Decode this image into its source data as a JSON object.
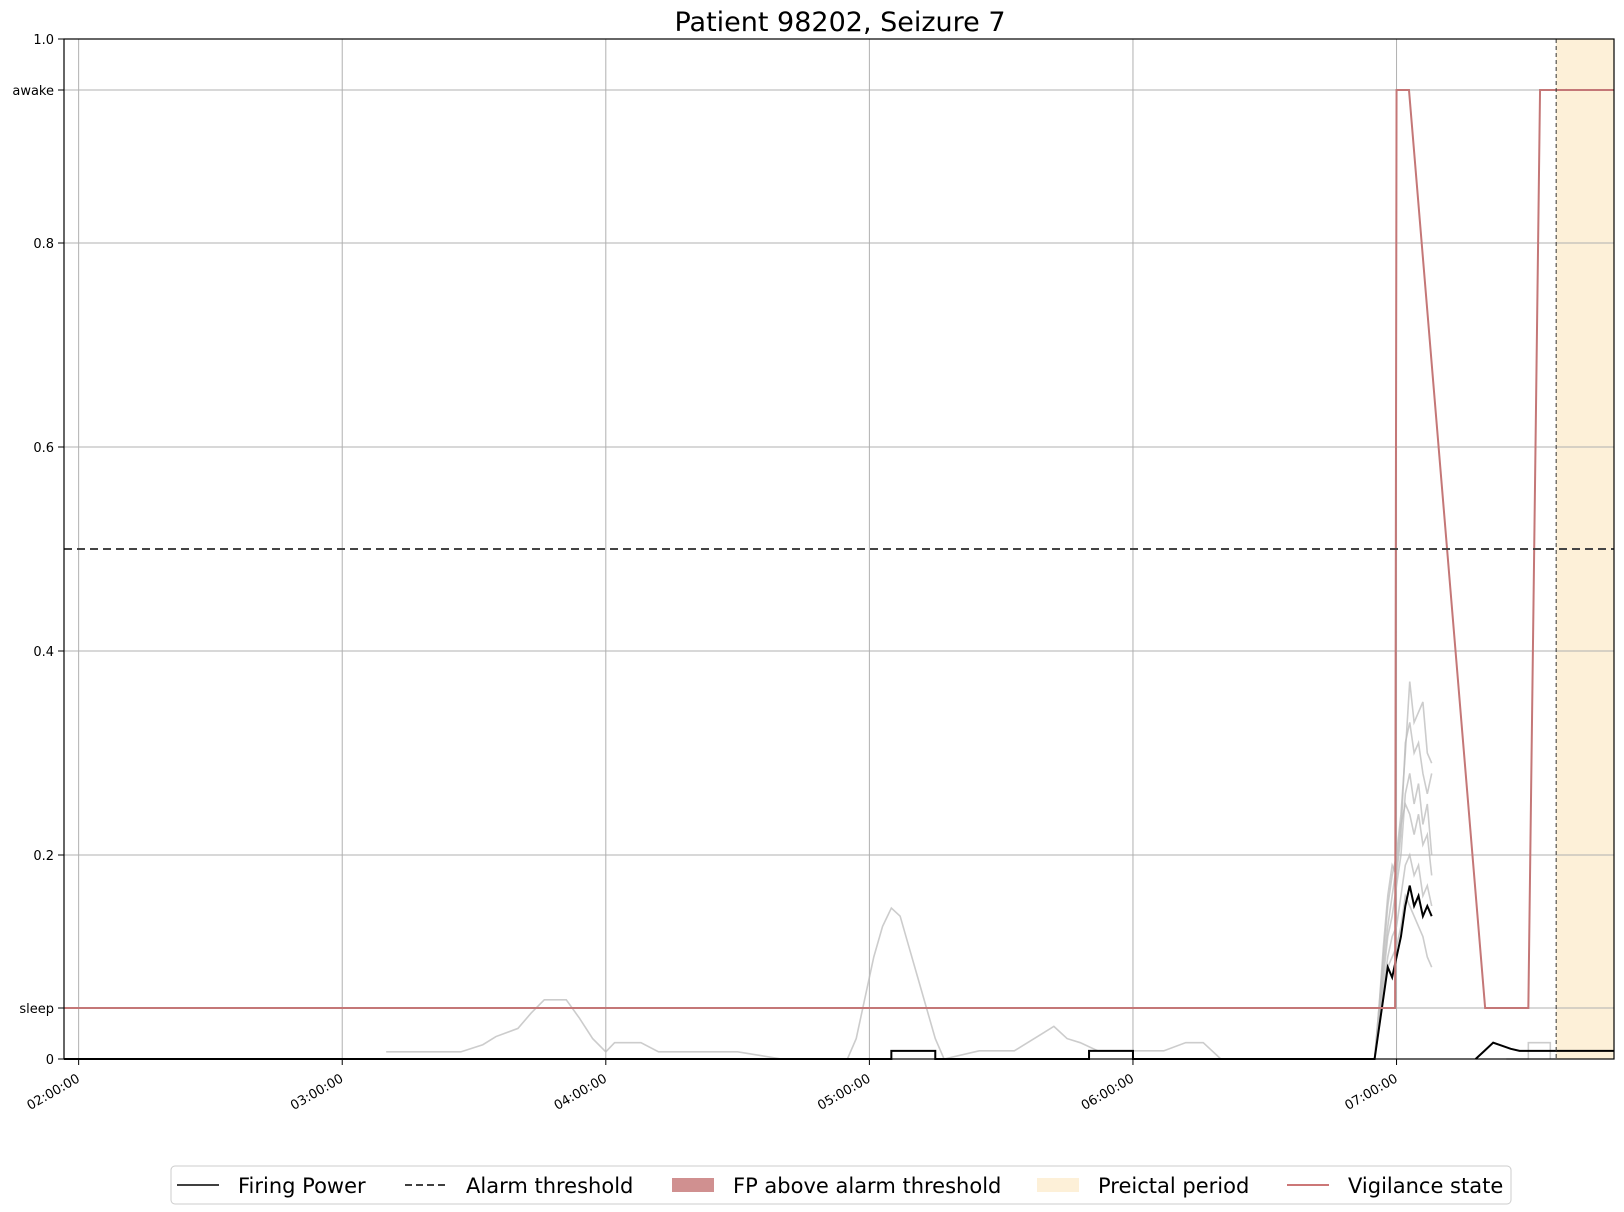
{
  "chart_data": {
    "type": "line",
    "title": "Patient 98202, Seizure 7",
    "xlim": [
      "01:56:40",
      "07:49:30"
    ],
    "ylim": [
      0,
      1.0
    ],
    "grid": true,
    "x_ticks": [
      "02:00:00",
      "03:00:00",
      "04:00:00",
      "05:00:00",
      "06:00:00",
      "07:00:00"
    ],
    "y_ticks": [
      {
        "value": 0,
        "label": "0"
      },
      {
        "value": 0.05,
        "label": "sleep"
      },
      {
        "value": 0.2,
        "label": "0.2"
      },
      {
        "value": 0.4,
        "label": "0.4"
      },
      {
        "value": 0.6,
        "label": "0.6"
      },
      {
        "value": 0.8,
        "label": "0.8"
      },
      {
        "value": 0.95,
        "label": "awake"
      },
      {
        "value": 1.0,
        "label": "1.0"
      }
    ],
    "alarm_threshold": 0.5,
    "seizure_onset": "07:36:20",
    "preictal_period": {
      "start": "07:36:20",
      "end": "07:49:30"
    },
    "vigilance_state": [
      {
        "x": "01:56:40",
        "y": 0.05
      },
      {
        "x": "06:59:40",
        "y": 0.05
      },
      {
        "x": "07:00:00",
        "y": 0.95
      },
      {
        "x": "07:02:50",
        "y": 0.95
      },
      {
        "x": "07:20:10",
        "y": 0.05
      },
      {
        "x": "07:30:00",
        "y": 0.05
      },
      {
        "x": "07:32:40",
        "y": 0.95
      },
      {
        "x": "07:49:30",
        "y": 0.95
      }
    ],
    "firing_power": [
      {
        "x": "01:56:40",
        "y": 0.0
      },
      {
        "x": "05:05:00",
        "y": 0.0
      },
      {
        "x": "05:05:00",
        "y": 0.008
      },
      {
        "x": "05:15:00",
        "y": 0.008
      },
      {
        "x": "05:15:00",
        "y": 0.0
      },
      {
        "x": "05:50:00",
        "y": 0.0
      },
      {
        "x": "05:50:00",
        "y": 0.008
      },
      {
        "x": "06:00:00",
        "y": 0.008
      },
      {
        "x": "06:00:00",
        "y": 0.0
      },
      {
        "x": "06:55:00",
        "y": 0.0
      },
      {
        "x": "06:56:00",
        "y": 0.03
      },
      {
        "x": "06:57:00",
        "y": 0.06
      },
      {
        "x": "06:58:00",
        "y": 0.09
      },
      {
        "x": "06:59:00",
        "y": 0.08
      },
      {
        "x": "07:00:00",
        "y": 0.1
      },
      {
        "x": "07:01:00",
        "y": 0.12
      },
      {
        "x": "07:02:00",
        "y": 0.15
      },
      {
        "x": "07:03:00",
        "y": 0.17
      },
      {
        "x": "07:04:00",
        "y": 0.15
      },
      {
        "x": "07:05:00",
        "y": 0.16
      },
      {
        "x": "07:06:00",
        "y": 0.14
      },
      {
        "x": "07:07:00",
        "y": 0.15
      },
      {
        "x": "07:08:00",
        "y": 0.14
      },
      {
        "x": "07:08:00",
        "y": null
      },
      {
        "x": "07:18:00",
        "y": 0.0
      },
      {
        "x": "07:20:00",
        "y": 0.008
      },
      {
        "x": "07:22:00",
        "y": 0.016
      },
      {
        "x": "07:26:00",
        "y": 0.01
      },
      {
        "x": "07:28:00",
        "y": 0.008
      },
      {
        "x": "07:49:30",
        "y": 0.008
      }
    ],
    "firing_power_runs": [
      [
        {
          "x": "03:10:00",
          "y": 0.007
        },
        {
          "x": "03:20:00",
          "y": 0.007
        },
        {
          "x": "03:27:00",
          "y": 0.007
        },
        {
          "x": "03:32:00",
          "y": 0.014
        },
        {
          "x": "03:35:00",
          "y": 0.022
        },
        {
          "x": "03:40:00",
          "y": 0.03
        },
        {
          "x": "03:43:00",
          "y": 0.045
        },
        {
          "x": "03:46:00",
          "y": 0.058
        },
        {
          "x": "03:51:00",
          "y": 0.058
        },
        {
          "x": "03:54:00",
          "y": 0.04
        },
        {
          "x": "03:57:00",
          "y": 0.02
        },
        {
          "x": "04:00:00",
          "y": 0.007
        },
        {
          "x": "04:02:00",
          "y": 0.016
        },
        {
          "x": "04:08:00",
          "y": 0.016
        },
        {
          "x": "04:12:00",
          "y": 0.007
        },
        {
          "x": "04:30:00",
          "y": 0.007
        },
        {
          "x": "04:40:00",
          "y": 0.0
        },
        {
          "x": "04:55:00",
          "y": 0.0
        },
        {
          "x": "04:57:00",
          "y": 0.02
        },
        {
          "x": "04:59:00",
          "y": 0.06
        },
        {
          "x": "05:01:00",
          "y": 0.1
        },
        {
          "x": "05:03:00",
          "y": 0.13
        },
        {
          "x": "05:05:00",
          "y": 0.148
        },
        {
          "x": "05:07:00",
          "y": 0.14
        },
        {
          "x": "05:09:00",
          "y": 0.11
        },
        {
          "x": "05:11:00",
          "y": 0.08
        },
        {
          "x": "05:13:00",
          "y": 0.05
        },
        {
          "x": "05:15:00",
          "y": 0.02
        },
        {
          "x": "05:17:00",
          "y": 0.0
        },
        {
          "x": "05:25:00",
          "y": 0.008
        },
        {
          "x": "05:33:00",
          "y": 0.008
        },
        {
          "x": "05:36:00",
          "y": 0.016
        },
        {
          "x": "05:39:00",
          "y": 0.024
        },
        {
          "x": "05:42:00",
          "y": 0.032
        },
        {
          "x": "05:45:00",
          "y": 0.02
        },
        {
          "x": "05:48:00",
          "y": 0.016
        },
        {
          "x": "05:52:00",
          "y": 0.008
        },
        {
          "x": "06:07:00",
          "y": 0.008
        },
        {
          "x": "06:12:00",
          "y": 0.016
        },
        {
          "x": "06:16:00",
          "y": 0.016
        },
        {
          "x": "06:18:00",
          "y": 0.008
        },
        {
          "x": "06:20:00",
          "y": 0.0
        }
      ],
      [
        {
          "x": "06:55:00",
          "y": 0.0
        },
        {
          "x": "06:56:00",
          "y": 0.05
        },
        {
          "x": "06:57:00",
          "y": 0.1
        },
        {
          "x": "06:58:00",
          "y": 0.15
        },
        {
          "x": "06:59:00",
          "y": 0.18
        },
        {
          "x": "07:00:00",
          "y": 0.2
        },
        {
          "x": "07:01:00",
          "y": 0.24
        },
        {
          "x": "07:02:00",
          "y": 0.3
        },
        {
          "x": "07:03:00",
          "y": 0.37
        },
        {
          "x": "07:04:00",
          "y": 0.33
        },
        {
          "x": "07:05:00",
          "y": 0.34
        },
        {
          "x": "07:06:00",
          "y": 0.35
        },
        {
          "x": "07:07:00",
          "y": 0.3
        },
        {
          "x": "07:08:00",
          "y": 0.29
        }
      ],
      [
        {
          "x": "06:55:00",
          "y": 0.0
        },
        {
          "x": "06:56:00",
          "y": 0.04
        },
        {
          "x": "06:57:00",
          "y": 0.08
        },
        {
          "x": "06:58:00",
          "y": 0.12
        },
        {
          "x": "06:59:00",
          "y": 0.14
        },
        {
          "x": "07:00:00",
          "y": 0.17
        },
        {
          "x": "07:01:00",
          "y": 0.2
        },
        {
          "x": "07:02:00",
          "y": 0.26
        },
        {
          "x": "07:03:00",
          "y": 0.28
        },
        {
          "x": "07:04:00",
          "y": 0.25
        },
        {
          "x": "07:05:00",
          "y": 0.27
        },
        {
          "x": "07:06:00",
          "y": 0.23
        },
        {
          "x": "07:07:00",
          "y": 0.25
        },
        {
          "x": "07:08:00",
          "y": 0.2
        }
      ],
      [
        {
          "x": "06:55:00",
          "y": 0.0
        },
        {
          "x": "06:56:00",
          "y": 0.03
        },
        {
          "x": "06:57:00",
          "y": 0.07
        },
        {
          "x": "06:58:00",
          "y": 0.1
        },
        {
          "x": "06:59:00",
          "y": 0.12
        },
        {
          "x": "07:00:00",
          "y": 0.13
        },
        {
          "x": "07:01:00",
          "y": 0.16
        },
        {
          "x": "07:02:00",
          "y": 0.19
        },
        {
          "x": "07:03:00",
          "y": 0.2
        },
        {
          "x": "07:04:00",
          "y": 0.18
        },
        {
          "x": "07:05:00",
          "y": 0.19
        },
        {
          "x": "07:06:00",
          "y": 0.16
        },
        {
          "x": "07:07:00",
          "y": 0.17
        },
        {
          "x": "07:08:00",
          "y": 0.15
        }
      ],
      [
        {
          "x": "06:55:00",
          "y": 0.0
        },
        {
          "x": "06:56:00",
          "y": 0.05
        },
        {
          "x": "06:57:00",
          "y": 0.11
        },
        {
          "x": "06:58:00",
          "y": 0.16
        },
        {
          "x": "06:59:00",
          "y": 0.19
        },
        {
          "x": "07:00:00",
          "y": 0.18
        },
        {
          "x": "07:01:00",
          "y": 0.22
        },
        {
          "x": "07:02:00",
          "y": 0.31
        },
        {
          "x": "07:03:00",
          "y": 0.33
        },
        {
          "x": "07:04:00",
          "y": 0.3
        },
        {
          "x": "07:05:00",
          "y": 0.31
        },
        {
          "x": "07:06:00",
          "y": 0.28
        },
        {
          "x": "07:07:00",
          "y": 0.26
        },
        {
          "x": "07:08:00",
          "y": 0.28
        }
      ],
      [
        {
          "x": "06:55:00",
          "y": 0.0
        },
        {
          "x": "06:56:00",
          "y": 0.03
        },
        {
          "x": "06:57:00",
          "y": 0.06
        },
        {
          "x": "06:58:00",
          "y": 0.09
        },
        {
          "x": "06:59:00",
          "y": 0.1
        },
        {
          "x": "07:00:00",
          "y": 0.11
        },
        {
          "x": "07:01:00",
          "y": 0.13
        },
        {
          "x": "07:02:00",
          "y": 0.16
        },
        {
          "x": "07:03:00",
          "y": 0.15
        },
        {
          "x": "07:04:00",
          "y": 0.14
        },
        {
          "x": "07:05:00",
          "y": 0.13
        },
        {
          "x": "07:06:00",
          "y": 0.12
        },
        {
          "x": "07:07:00",
          "y": 0.1
        },
        {
          "x": "07:08:00",
          "y": 0.09
        }
      ],
      [
        {
          "x": "06:55:00",
          "y": 0.0
        },
        {
          "x": "06:56:00",
          "y": 0.04
        },
        {
          "x": "06:57:00",
          "y": 0.09
        },
        {
          "x": "06:58:00",
          "y": 0.13
        },
        {
          "x": "06:59:00",
          "y": 0.16
        },
        {
          "x": "07:00:00",
          "y": 0.19
        },
        {
          "x": "07:01:00",
          "y": 0.23
        },
        {
          "x": "07:02:00",
          "y": 0.25
        },
        {
          "x": "07:03:00",
          "y": 0.24
        },
        {
          "x": "07:04:00",
          "y": 0.22
        },
        {
          "x": "07:05:00",
          "y": 0.24
        },
        {
          "x": "07:06:00",
          "y": 0.21
        },
        {
          "x": "07:07:00",
          "y": 0.22
        },
        {
          "x": "07:08:00",
          "y": 0.18
        }
      ],
      [
        {
          "x": "07:25:00",
          "y": 0.0
        },
        {
          "x": "07:30:00",
          "y": 0.0
        },
        {
          "x": "07:30:00",
          "y": 0.016
        },
        {
          "x": "07:35:00",
          "y": 0.016
        },
        {
          "x": "07:35:00",
          "y": 0.0
        }
      ]
    ],
    "legend": {
      "placement": "bottom-center",
      "entries": [
        {
          "label": "Firing Power",
          "kind": "line",
          "color": "#404040",
          "dash": "solid"
        },
        {
          "label": "Alarm threshold",
          "kind": "line",
          "color": "#404040",
          "dash": "dashed"
        },
        {
          "label": "FP above alarm threshold",
          "kind": "patch",
          "color": "#d09090"
        },
        {
          "label": "Preictal period",
          "kind": "patch",
          "color": "#fdf0d8"
        },
        {
          "label": "Vigilance state",
          "kind": "line",
          "color": "#cc7777",
          "dash": "solid"
        }
      ]
    },
    "colors": {
      "firing_power": "#000000",
      "firing_power_runs": "#bbbbbb",
      "alarm_threshold": "#444444",
      "vigilance_state": "#c47777",
      "preictal": "#fdf0d8",
      "grid": "#b0b0b0"
    }
  }
}
